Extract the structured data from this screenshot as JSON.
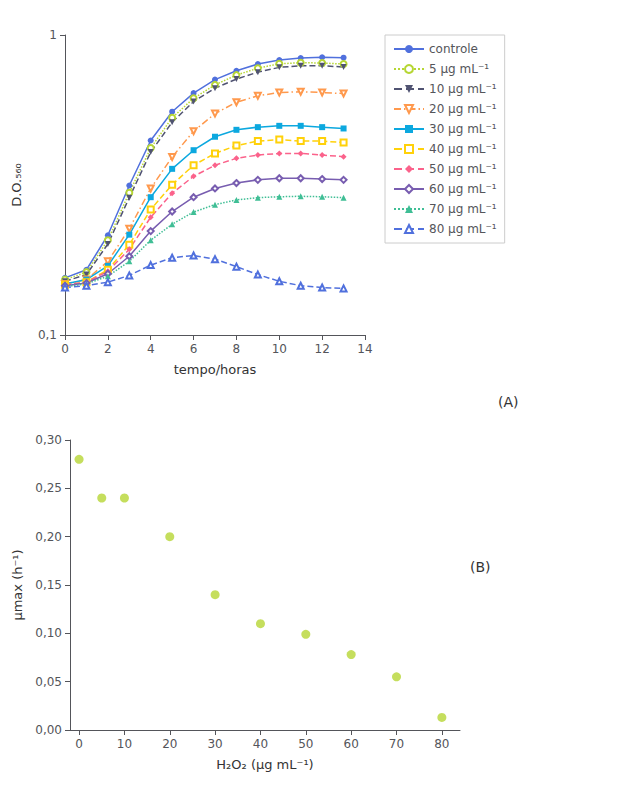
{
  "chart_data": [
    {
      "type": "line",
      "log": "y",
      "xlabel": "tempo/horas",
      "ylabel": "D.O.₅₆₀",
      "xlim": [
        0,
        14
      ],
      "xticks": [
        0,
        2,
        4,
        6,
        8,
        10,
        12,
        14
      ],
      "ylim": [
        0.1,
        1.0
      ],
      "yticks": [
        {
          "value": 0.1,
          "label": "0,1"
        },
        1
      ],
      "grid": false,
      "legend": "right",
      "annotation": "(A)",
      "x": [
        0,
        1,
        2,
        3,
        4,
        5,
        6,
        7,
        8,
        9,
        10,
        11,
        12,
        13
      ],
      "series": [
        {
          "name": "controle",
          "marker": "circle",
          "line_style": "solid",
          "values": [
            0.155,
            0.165,
            0.215,
            0.315,
            0.445,
            0.555,
            0.64,
            0.71,
            0.76,
            0.8,
            0.825,
            0.838,
            0.843,
            0.84
          ]
        },
        {
          "name": "5 μg mL⁻¹",
          "marker": "open_circle",
          "line_style": "dotted",
          "values": [
            0.153,
            0.162,
            0.207,
            0.298,
            0.42,
            0.53,
            0.615,
            0.682,
            0.735,
            0.775,
            0.802,
            0.808,
            0.807,
            0.8
          ]
        },
        {
          "name": "10 μg mL⁻¹",
          "marker": "triangle_down",
          "line_style": "dashed",
          "values": [
            0.151,
            0.159,
            0.201,
            0.287,
            0.407,
            0.512,
            0.6,
            0.665,
            0.713,
            0.752,
            0.78,
            0.79,
            0.79,
            0.782
          ]
        },
        {
          "name": "20 μg mL⁻¹",
          "marker": "open_triangle_down",
          "line_style": "dashdot",
          "values": [
            0.148,
            0.153,
            0.176,
            0.226,
            0.308,
            0.392,
            0.478,
            0.547,
            0.597,
            0.627,
            0.643,
            0.647,
            0.643,
            0.638
          ]
        },
        {
          "name": "30 μg mL⁻¹",
          "marker": "square",
          "line_style": "solid",
          "values": [
            0.148,
            0.153,
            0.17,
            0.216,
            0.288,
            0.358,
            0.413,
            0.458,
            0.483,
            0.493,
            0.498,
            0.498,
            0.493,
            0.488
          ]
        },
        {
          "name": "40 μg mL⁻¹",
          "marker": "open_square",
          "line_style": "dashed",
          "values": [
            0.147,
            0.15,
            0.165,
            0.2,
            0.262,
            0.317,
            0.368,
            0.403,
            0.428,
            0.443,
            0.448,
            0.443,
            0.443,
            0.438
          ]
        },
        {
          "name": "50 μg mL⁻¹",
          "marker": "diamond",
          "line_style": "dashed",
          "values": [
            0.147,
            0.15,
            0.163,
            0.193,
            0.247,
            0.297,
            0.338,
            0.368,
            0.388,
            0.398,
            0.403,
            0.403,
            0.398,
            0.393
          ]
        },
        {
          "name": "60 μg mL⁻¹",
          "marker": "open_diamond",
          "line_style": "solid",
          "values": [
            0.146,
            0.149,
            0.16,
            0.183,
            0.222,
            0.258,
            0.288,
            0.308,
            0.321,
            0.329,
            0.333,
            0.333,
            0.331,
            0.329
          ]
        },
        {
          "name": "70 μg mL⁻¹",
          "marker": "triangle",
          "line_style": "dotted",
          "values": [
            0.145,
            0.148,
            0.157,
            0.176,
            0.207,
            0.234,
            0.257,
            0.272,
            0.282,
            0.287,
            0.289,
            0.29,
            0.289,
            0.287
          ]
        },
        {
          "name": "80 μg mL⁻¹",
          "marker": "open_triangle",
          "line_style": "dashed",
          "values": [
            0.144,
            0.146,
            0.15,
            0.158,
            0.171,
            0.181,
            0.184,
            0.179,
            0.169,
            0.159,
            0.151,
            0.146,
            0.144,
            0.143
          ]
        }
      ]
    },
    {
      "type": "scatter",
      "xlabel": "H₂O₂ (μg mL⁻¹)",
      "ylabel": "μmax (h⁻¹)",
      "xlim": [
        -2,
        84
      ],
      "xticks": [
        0,
        10,
        20,
        30,
        40,
        50,
        60,
        70,
        80
      ],
      "ylim": [
        0.0,
        0.3
      ],
      "yticks": [
        {
          "value": 0.0,
          "label": "0,00"
        },
        {
          "value": 0.05,
          "label": "0,05"
        },
        {
          "value": 0.1,
          "label": "0,10"
        },
        {
          "value": 0.15,
          "label": "0,15"
        },
        {
          "value": 0.2,
          "label": "0,20"
        },
        {
          "value": 0.25,
          "label": "0,25"
        },
        {
          "value": 0.3,
          "label": "0,30"
        }
      ],
      "grid": false,
      "annotation": "(B)",
      "marker": "circle",
      "x": [
        0,
        5,
        10,
        20,
        30,
        40,
        50,
        60,
        70,
        80
      ],
      "values": [
        0.28,
        0.24,
        0.24,
        0.2,
        0.14,
        0.11,
        0.099,
        0.078,
        0.055,
        0.013
      ]
    }
  ]
}
